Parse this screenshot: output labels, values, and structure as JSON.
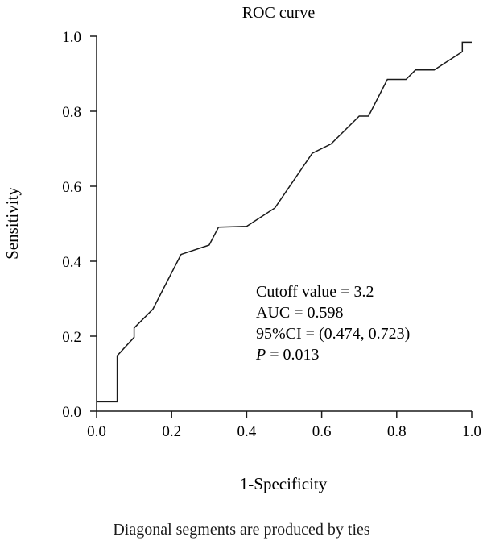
{
  "chart_data": {
    "type": "line",
    "title": "ROC curve",
    "xlabel": "1-Specificity",
    "ylabel": "Sensitivity",
    "xlim": [
      0,
      1
    ],
    "ylim": [
      0,
      1
    ],
    "x_ticks": [
      "0.0",
      "0.2",
      "0.4",
      "0.6",
      "0.8",
      "1.0"
    ],
    "y_ticks": [
      "0.0",
      "0.2",
      "0.4",
      "0.6",
      "0.8",
      "1.0"
    ],
    "grid": false,
    "legend": "none",
    "color": "#1a1a1a",
    "series": [
      {
        "points": [
          [
            0.0,
            0.025
          ],
          [
            0.055,
            0.025
          ],
          [
            0.055,
            0.148
          ],
          [
            0.1,
            0.197
          ],
          [
            0.1,
            0.222
          ],
          [
            0.15,
            0.272
          ],
          [
            0.225,
            0.418
          ],
          [
            0.3,
            0.443
          ],
          [
            0.325,
            0.491
          ],
          [
            0.4,
            0.493
          ],
          [
            0.475,
            0.542
          ],
          [
            0.575,
            0.688
          ],
          [
            0.625,
            0.713
          ],
          [
            0.7,
            0.787
          ],
          [
            0.725,
            0.787
          ],
          [
            0.775,
            0.885
          ],
          [
            0.825,
            0.885
          ],
          [
            0.85,
            0.91
          ],
          [
            0.9,
            0.91
          ],
          [
            0.975,
            0.959
          ],
          [
            0.975,
            0.984
          ],
          [
            1.0,
            0.984
          ]
        ]
      }
    ],
    "annotations": [
      "Cutoff value = 3.2",
      "AUC = 0.598",
      "95%CI = (0.474, 0.723)",
      "P = 0.013"
    ]
  },
  "footnote": "Diagonal segments are produced by ties"
}
